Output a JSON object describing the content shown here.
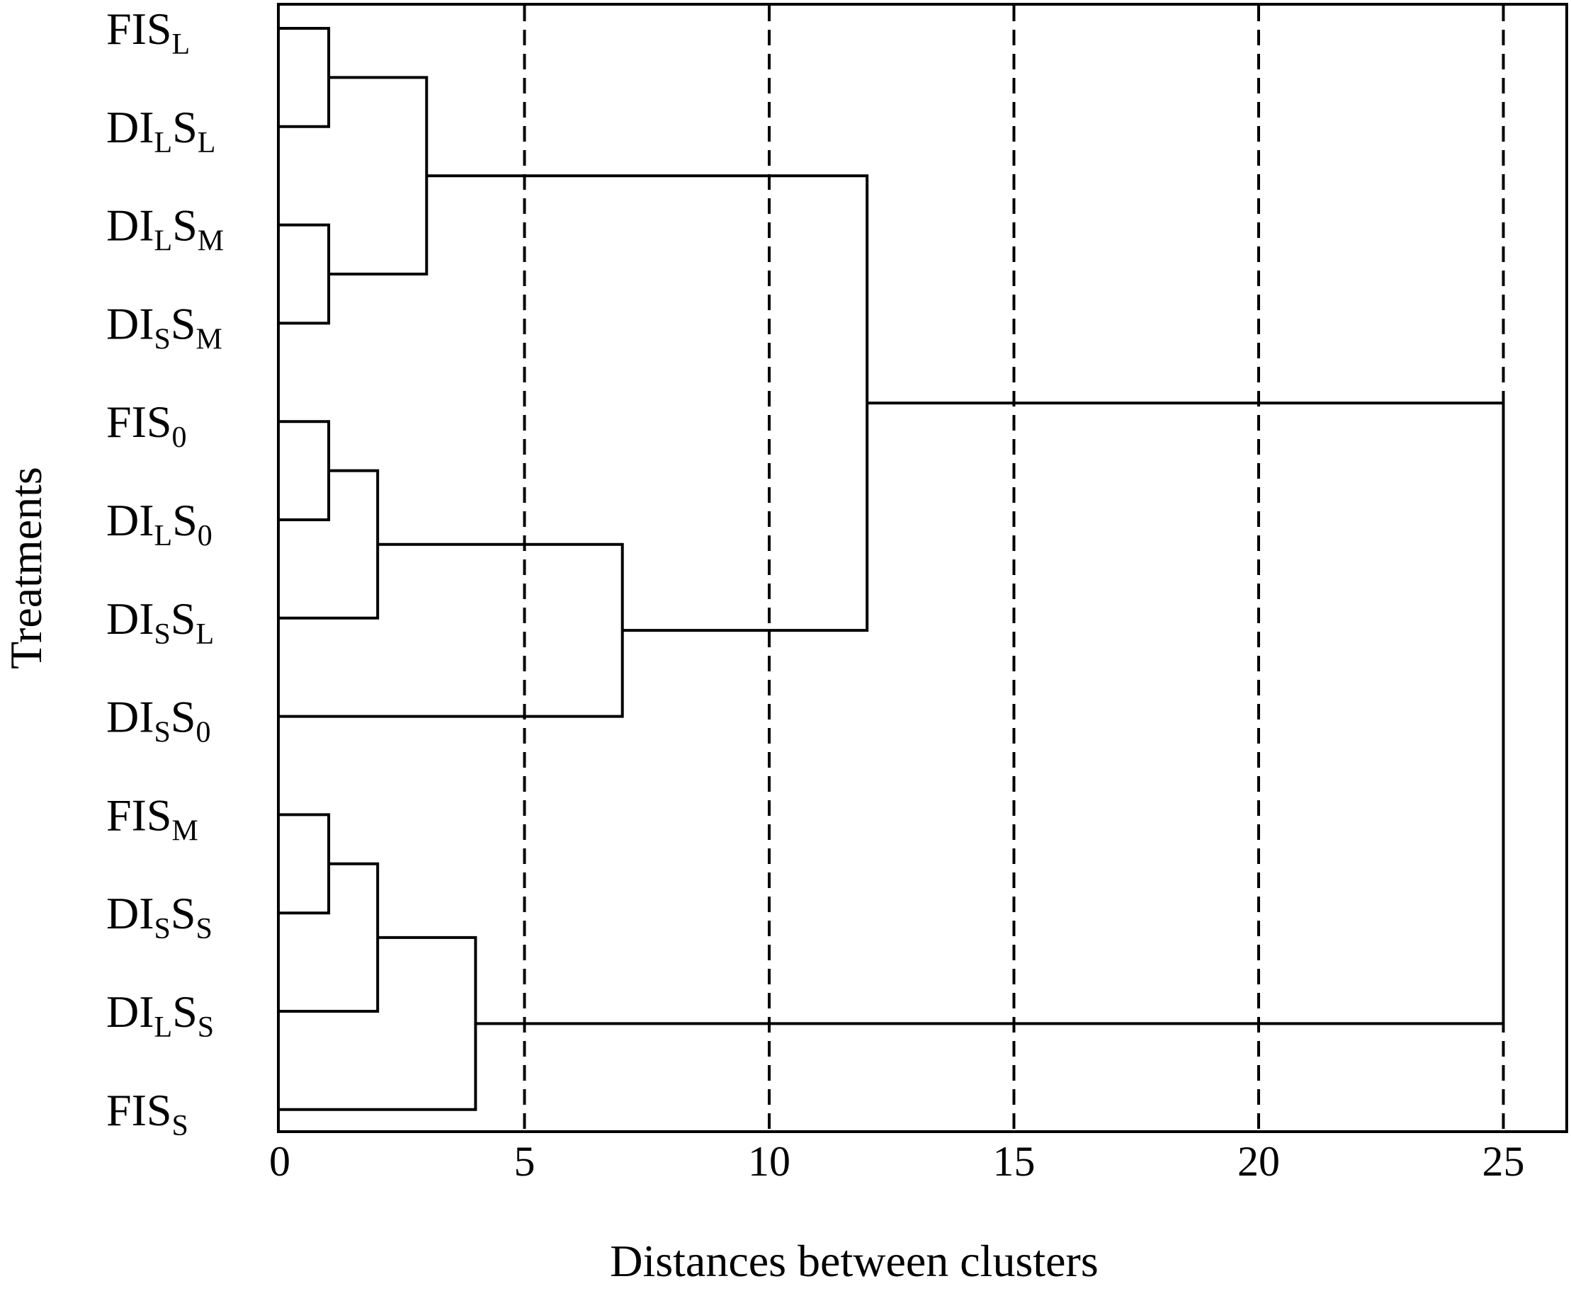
{
  "chart_data": {
    "type": "dendrogram",
    "title": "",
    "xlabel": "Distances between clusters",
    "ylabel": "Treatments",
    "xlim": [
      0,
      26
    ],
    "xticks": [
      0,
      5,
      10,
      15,
      20,
      25
    ],
    "grid": {
      "vertical_dashed_at": [
        5,
        10,
        15,
        20,
        25
      ]
    },
    "leaves": [
      {
        "id": "FIS_L",
        "parts": [
          [
            "FIS",
            false
          ],
          [
            "L",
            true
          ]
        ]
      },
      {
        "id": "DI_LS_L",
        "parts": [
          [
            "DI",
            false
          ],
          [
            "L",
            true
          ],
          [
            "S",
            false
          ],
          [
            "L",
            true
          ]
        ]
      },
      {
        "id": "DI_LS_M",
        "parts": [
          [
            "DI",
            false
          ],
          [
            "L",
            true
          ],
          [
            "S",
            false
          ],
          [
            "M",
            true
          ]
        ]
      },
      {
        "id": "DI_SS_M",
        "parts": [
          [
            "DI",
            false
          ],
          [
            "S",
            true
          ],
          [
            "S",
            false
          ],
          [
            "M",
            true
          ]
        ]
      },
      {
        "id": "FIS_0",
        "parts": [
          [
            "FIS",
            false
          ],
          [
            "0",
            true
          ]
        ]
      },
      {
        "id": "DI_LS_0",
        "parts": [
          [
            "DI",
            false
          ],
          [
            "L",
            true
          ],
          [
            "S",
            false
          ],
          [
            "0",
            true
          ]
        ]
      },
      {
        "id": "DI_SS_L",
        "parts": [
          [
            "DI",
            false
          ],
          [
            "S",
            true
          ],
          [
            "S",
            false
          ],
          [
            "L",
            true
          ]
        ]
      },
      {
        "id": "DI_SS_0",
        "parts": [
          [
            "DI",
            false
          ],
          [
            "S",
            true
          ],
          [
            "S",
            false
          ],
          [
            "0",
            true
          ]
        ]
      },
      {
        "id": "FIS_M",
        "parts": [
          [
            "FIS",
            false
          ],
          [
            "M",
            true
          ]
        ]
      },
      {
        "id": "DI_SS_S",
        "parts": [
          [
            "DI",
            false
          ],
          [
            "S",
            true
          ],
          [
            "S",
            false
          ],
          [
            "S",
            true
          ]
        ]
      },
      {
        "id": "DI_LS_S",
        "parts": [
          [
            "DI",
            false
          ],
          [
            "L",
            true
          ],
          [
            "S",
            false
          ],
          [
            "S",
            true
          ]
        ]
      },
      {
        "id": "FIS_S",
        "parts": [
          [
            "FIS",
            false
          ],
          [
            "S",
            true
          ]
        ]
      }
    ],
    "merges": [
      {
        "a": "L0",
        "b": "L1",
        "distance": 1
      },
      {
        "a": "L2",
        "b": "L3",
        "distance": 1
      },
      {
        "a": "M0",
        "b": "M1",
        "distance": 3
      },
      {
        "a": "L4",
        "b": "L5",
        "distance": 1
      },
      {
        "a": "M3",
        "b": "L6",
        "distance": 2
      },
      {
        "a": "M4",
        "b": "L7",
        "distance": 7
      },
      {
        "a": "M2",
        "b": "M5",
        "distance": 12
      },
      {
        "a": "L8",
        "b": "L9",
        "distance": 1
      },
      {
        "a": "M7",
        "b": "L10",
        "distance": 2
      },
      {
        "a": "M8",
        "b": "L11",
        "distance": 4
      },
      {
        "a": "M6",
        "b": "M9",
        "distance": 25
      }
    ]
  }
}
